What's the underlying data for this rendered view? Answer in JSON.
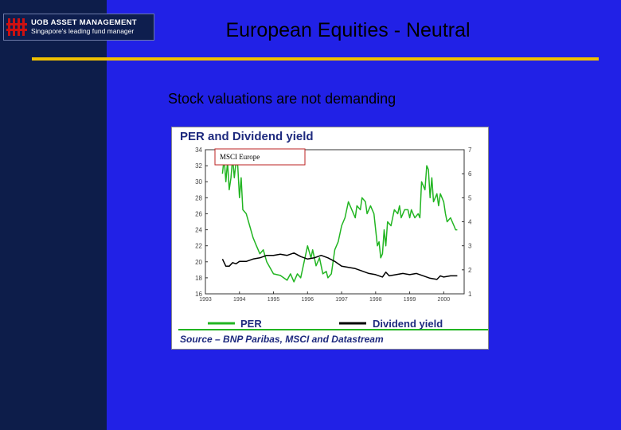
{
  "header": {
    "logo_main": "UOB ASSET MANAGEMENT",
    "logo_sub": "Singapore's leading fund manager",
    "title": "European Equities - Neutral"
  },
  "subtitle": "Stock valuations are not demanding",
  "colors": {
    "background": "#2121e6",
    "left_bar": "#0d1d4a",
    "rule": "#f0c000",
    "per_line": "#22b522",
    "dividend_line": "#000000",
    "logo_mark": "#cc1111"
  },
  "chart_data": {
    "type": "line",
    "title": "PER and Dividend yield",
    "annotation": "MSCI Europe",
    "source": "Source – BNP Paribas, MSCI and Datastream",
    "x_ticks": [
      "1993",
      "1994",
      "1995",
      "1996",
      "1997",
      "1998",
      "1999",
      "2000"
    ],
    "x_range": [
      1993.0,
      2000.6
    ],
    "left_axis": {
      "ticks": [
        "34",
        "32",
        "30",
        "28",
        "26",
        "24",
        "22",
        "20",
        "18",
        "16"
      ],
      "range": [
        16,
        34
      ]
    },
    "right_axis": {
      "ticks": [
        "7",
        "6",
        "5",
        "4",
        "3",
        "2",
        "1"
      ],
      "range": [
        1,
        7
      ]
    },
    "series": [
      {
        "name": "PER",
        "axis": "left",
        "color": "#22b522",
        "points": [
          [
            1993.5,
            31.0
          ],
          [
            1993.55,
            33.0
          ],
          [
            1993.6,
            30.0
          ],
          [
            1993.65,
            32.5
          ],
          [
            1993.7,
            29.0
          ],
          [
            1993.75,
            30.5
          ],
          [
            1993.8,
            33.0
          ],
          [
            1993.85,
            30.5
          ],
          [
            1993.9,
            32.5
          ],
          [
            1993.95,
            32.0
          ],
          [
            1994.0,
            28.0
          ],
          [
            1994.05,
            30.5
          ],
          [
            1994.1,
            26.5
          ],
          [
            1994.2,
            26.0
          ],
          [
            1994.3,
            24.5
          ],
          [
            1994.4,
            23.0
          ],
          [
            1994.5,
            22.0
          ],
          [
            1994.6,
            21.0
          ],
          [
            1994.7,
            21.5
          ],
          [
            1994.8,
            20.0
          ],
          [
            1995.0,
            18.5
          ],
          [
            1995.2,
            18.3
          ],
          [
            1995.4,
            17.7
          ],
          [
            1995.5,
            18.5
          ],
          [
            1995.6,
            17.5
          ],
          [
            1995.7,
            18.5
          ],
          [
            1995.8,
            18.0
          ],
          [
            1995.9,
            20.0
          ],
          [
            1996.0,
            22.0
          ],
          [
            1996.1,
            20.5
          ],
          [
            1996.15,
            21.5
          ],
          [
            1996.25,
            19.5
          ],
          [
            1996.35,
            20.5
          ],
          [
            1996.45,
            18.5
          ],
          [
            1996.55,
            18.8
          ],
          [
            1996.6,
            18.0
          ],
          [
            1996.7,
            18.5
          ],
          [
            1996.8,
            21.5
          ],
          [
            1996.9,
            22.5
          ],
          [
            1997.0,
            24.5
          ],
          [
            1997.1,
            25.5
          ],
          [
            1997.2,
            27.5
          ],
          [
            1997.3,
            26.5
          ],
          [
            1997.4,
            25.5
          ],
          [
            1997.45,
            27.0
          ],
          [
            1997.55,
            26.5
          ],
          [
            1997.6,
            28.0
          ],
          [
            1997.7,
            27.5
          ],
          [
            1997.75,
            26.0
          ],
          [
            1997.85,
            27.0
          ],
          [
            1997.95,
            26.0
          ],
          [
            1998.05,
            22.0
          ],
          [
            1998.1,
            22.5
          ],
          [
            1998.15,
            20.5
          ],
          [
            1998.2,
            21.0
          ],
          [
            1998.25,
            24.0
          ],
          [
            1998.3,
            22.0
          ],
          [
            1998.35,
            25.0
          ],
          [
            1998.45,
            24.5
          ],
          [
            1998.55,
            26.5
          ],
          [
            1998.65,
            26.0
          ],
          [
            1998.7,
            27.0
          ],
          [
            1998.75,
            25.5
          ],
          [
            1998.85,
            26.5
          ],
          [
            1998.95,
            26.5
          ],
          [
            1999.0,
            25.5
          ],
          [
            1999.05,
            26.5
          ],
          [
            1999.15,
            25.5
          ],
          [
            1999.25,
            26.0
          ],
          [
            1999.3,
            25.5
          ],
          [
            1999.35,
            30.0
          ],
          [
            1999.45,
            29.0
          ],
          [
            1999.5,
            32.0
          ],
          [
            1999.55,
            31.5
          ],
          [
            1999.6,
            28.0
          ],
          [
            1999.65,
            30.5
          ],
          [
            1999.7,
            27.5
          ],
          [
            1999.8,
            28.5
          ],
          [
            1999.85,
            27.0
          ],
          [
            1999.9,
            28.5
          ],
          [
            2000.0,
            27.5
          ],
          [
            2000.05,
            26.0
          ],
          [
            2000.1,
            25.0
          ],
          [
            2000.2,
            25.5
          ],
          [
            2000.3,
            24.5
          ],
          [
            2000.35,
            24.0
          ],
          [
            2000.4,
            24.0
          ]
        ]
      },
      {
        "name": "Dividend yield",
        "axis": "right",
        "color": "#000000",
        "points": [
          [
            1993.5,
            2.45
          ],
          [
            1993.6,
            2.15
          ],
          [
            1993.7,
            2.15
          ],
          [
            1993.8,
            2.3
          ],
          [
            1993.9,
            2.25
          ],
          [
            1994.0,
            2.35
          ],
          [
            1994.2,
            2.35
          ],
          [
            1994.4,
            2.45
          ],
          [
            1994.6,
            2.5
          ],
          [
            1994.8,
            2.6
          ],
          [
            1995.0,
            2.6
          ],
          [
            1995.2,
            2.65
          ],
          [
            1995.4,
            2.6
          ],
          [
            1995.6,
            2.7
          ],
          [
            1995.8,
            2.55
          ],
          [
            1996.0,
            2.45
          ],
          [
            1996.2,
            2.5
          ],
          [
            1996.4,
            2.6
          ],
          [
            1996.6,
            2.5
          ],
          [
            1996.8,
            2.35
          ],
          [
            1997.0,
            2.15
          ],
          [
            1997.2,
            2.1
          ],
          [
            1997.4,
            2.05
          ],
          [
            1997.6,
            1.95
          ],
          [
            1997.8,
            1.85
          ],
          [
            1998.0,
            1.8
          ],
          [
            1998.2,
            1.7
          ],
          [
            1998.3,
            1.9
          ],
          [
            1998.4,
            1.75
          ],
          [
            1998.6,
            1.8
          ],
          [
            1998.8,
            1.85
          ],
          [
            1999.0,
            1.8
          ],
          [
            1999.2,
            1.85
          ],
          [
            1999.4,
            1.75
          ],
          [
            1999.6,
            1.65
          ],
          [
            1999.8,
            1.6
          ],
          [
            1999.9,
            1.75
          ],
          [
            2000.0,
            1.7
          ],
          [
            2000.2,
            1.75
          ],
          [
            2000.4,
            1.75
          ]
        ]
      }
    ],
    "legend": [
      {
        "label": "PER",
        "color": "#22b522"
      },
      {
        "label": "Dividend yield",
        "color": "#000000"
      }
    ]
  }
}
